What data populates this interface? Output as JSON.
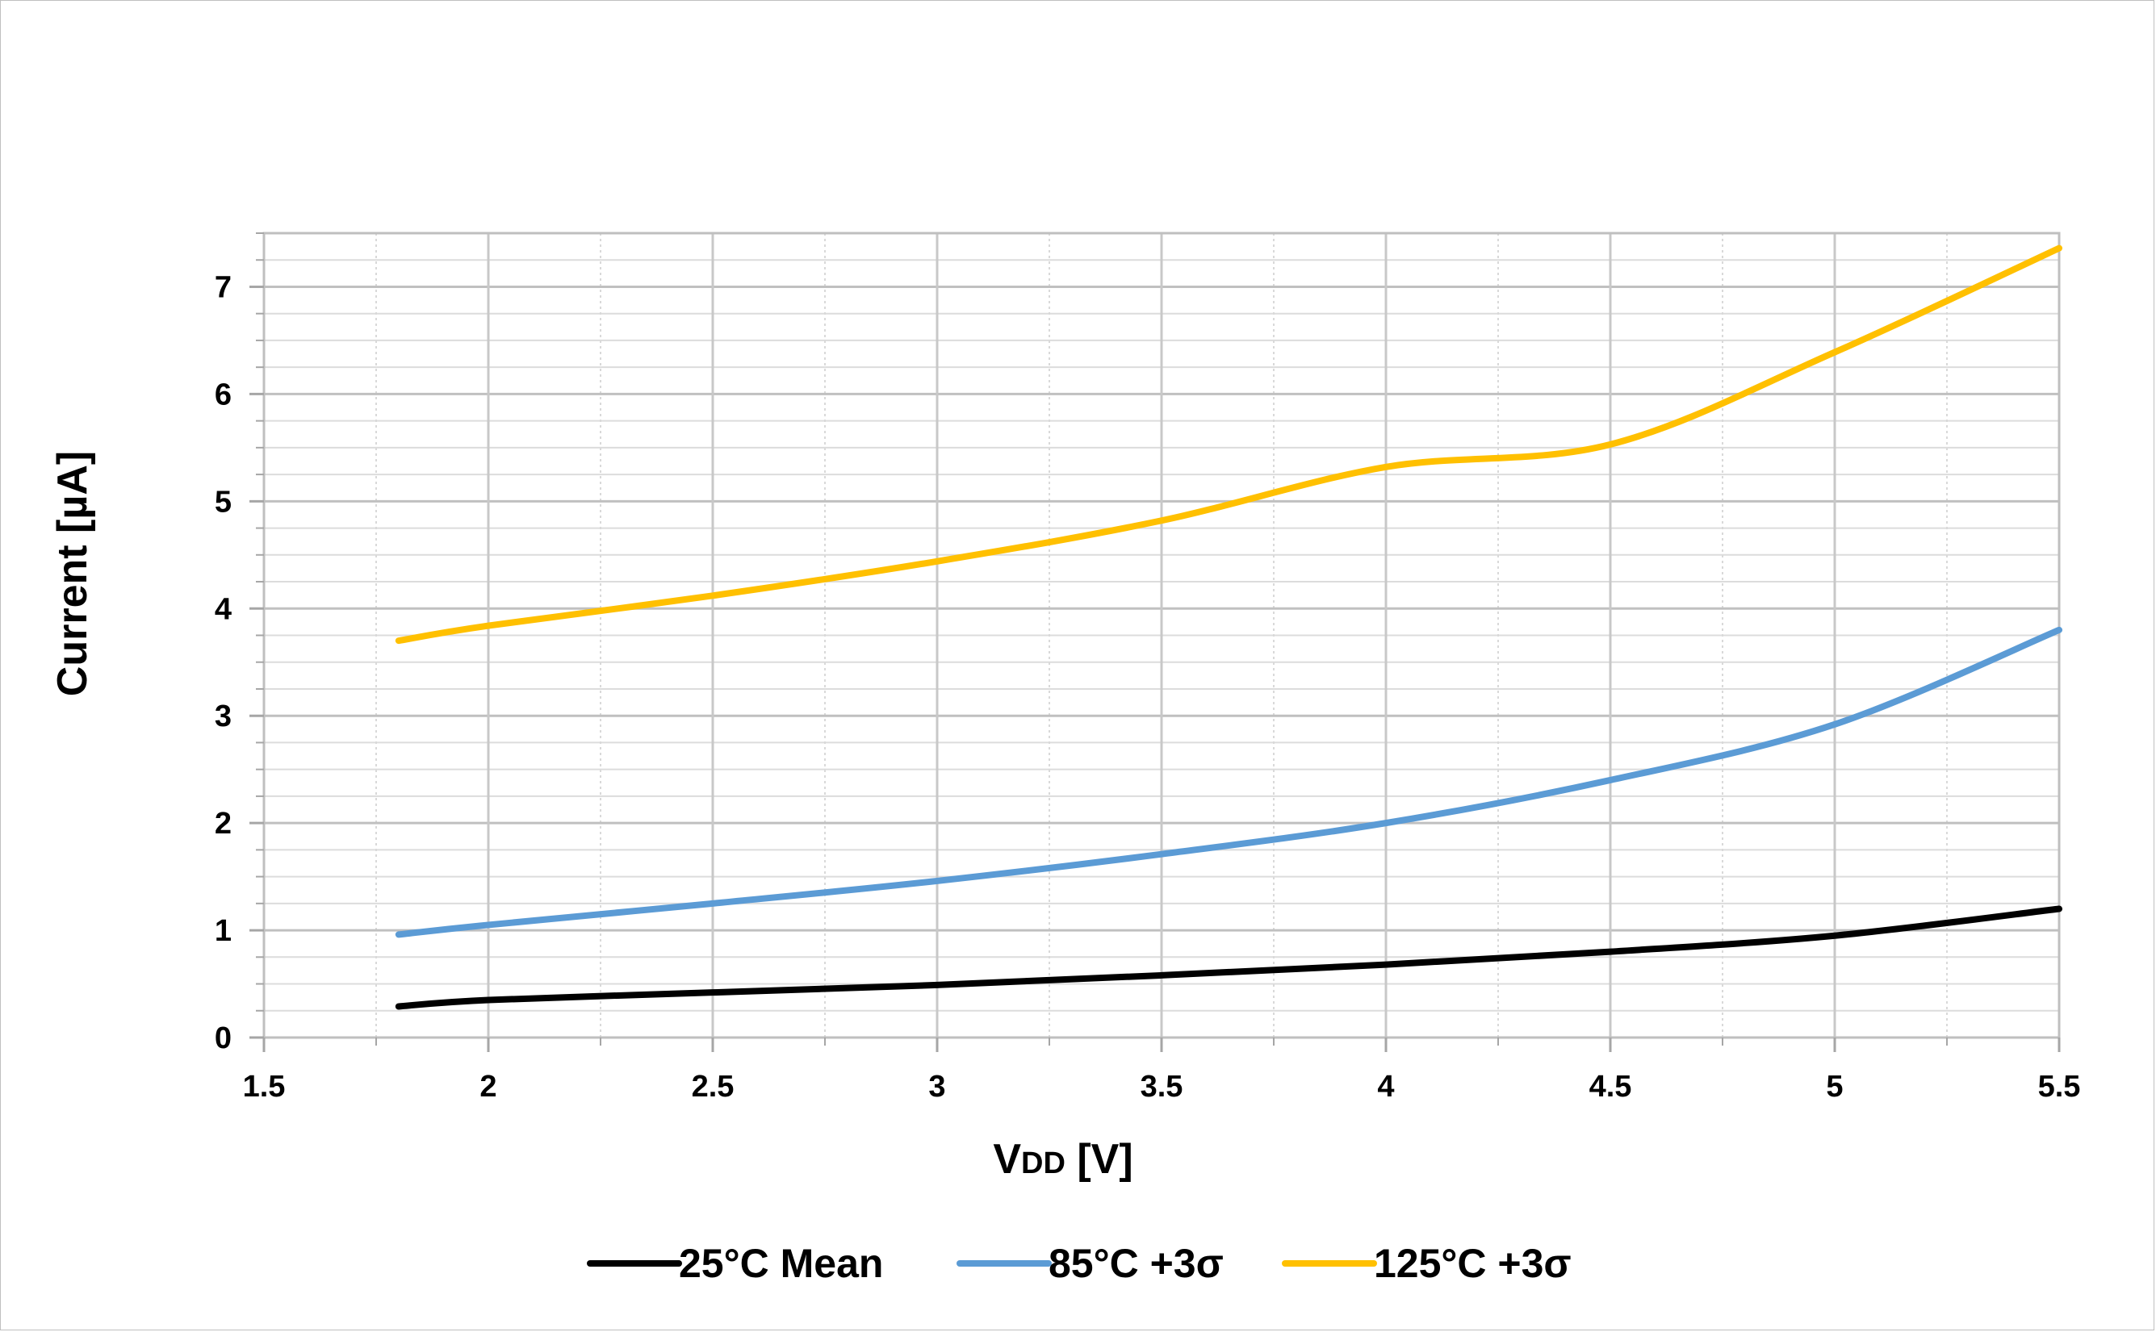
{
  "chart_data": {
    "type": "line",
    "title": "",
    "xlabel_main": "V",
    "xlabel_sub": "DD",
    "xlabel_unit": " [V]",
    "ylabel": "Current [µA]",
    "xlim": [
      1.5,
      5.5
    ],
    "ylim": [
      0,
      7.5
    ],
    "x_ticks": [
      1.5,
      2,
      2.5,
      3,
      3.5,
      4,
      4.5,
      5,
      5.5
    ],
    "x_tick_labels": [
      "1.5",
      "2",
      "2.5",
      "3",
      "3.5",
      "4",
      "4.5",
      "5",
      "5.5"
    ],
    "y_ticks": [
      0,
      1,
      2,
      3,
      4,
      5,
      6,
      7
    ],
    "y_tick_labels": [
      "0",
      "1",
      "2",
      "3",
      "4",
      "5",
      "6",
      "7"
    ],
    "grid": true,
    "legend_position": "bottom",
    "series": [
      {
        "name": "25°C Mean",
        "color": "#000000",
        "x": [
          1.8,
          2.0,
          2.5,
          3.0,
          3.5,
          4.0,
          4.5,
          5.0,
          5.5
        ],
        "y": [
          0.29,
          0.35,
          0.42,
          0.49,
          0.58,
          0.68,
          0.8,
          0.95,
          1.2
        ]
      },
      {
        "name": "85°C +3σ",
        "color": "#5b9bd5",
        "x": [
          1.8,
          2.0,
          2.5,
          3.0,
          3.5,
          4.0,
          4.5,
          5.0,
          5.5
        ],
        "y": [
          0.96,
          1.05,
          1.25,
          1.46,
          1.71,
          2.0,
          2.4,
          2.92,
          3.8
        ]
      },
      {
        "name": "125°C +3σ",
        "color": "#ffc000",
        "x": [
          1.8,
          2.0,
          2.5,
          3.0,
          3.5,
          4.0,
          4.5,
          5.0,
          5.5
        ],
        "y": [
          3.7,
          3.84,
          4.12,
          4.44,
          4.82,
          5.32,
          5.53,
          6.39,
          7.36
        ]
      }
    ]
  }
}
